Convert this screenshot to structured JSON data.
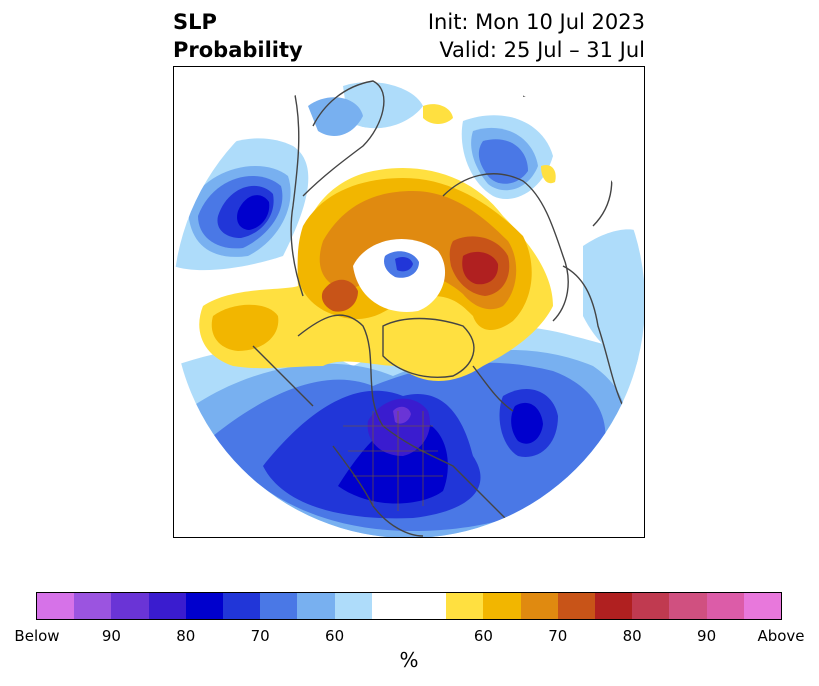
{
  "title": {
    "left_line1": "SLP",
    "left_line2": "Probability",
    "right_line1": "Init: Mon 10 Jul 2023",
    "right_line2": "Valid: 25 Jul – 31 Jul"
  },
  "colorbar": {
    "colors": [
      "#d672e8",
      "#9b54e0",
      "#6a34d6",
      "#3a1ccf",
      "#0000cd",
      "#2136d8",
      "#4a78e6",
      "#78b0f0",
      "#aedcfa",
      "#ffffff",
      "#ffffff",
      "#ffe040",
      "#f2b600",
      "#e08a10",
      "#c85418",
      "#b02020",
      "#c03a50",
      "#d05080",
      "#dc5ca8",
      "#e878dc"
    ],
    "tick_labels": [
      "Below",
      "90",
      "80",
      "70",
      "60",
      "60",
      "70",
      "80",
      "90",
      "Above"
    ],
    "unit": "%"
  },
  "map": {
    "projection": "north-polar-stereographic",
    "variable": "sea-level-pressure-probability",
    "colors": {
      "above_60": "#ffe040",
      "above_65": "#f2b600",
      "above_70": "#e08a10",
      "above_75": "#c85418",
      "above_80": "#b02020",
      "below_60": "#aedcfa",
      "below_65": "#78b0f0",
      "below_70": "#4a78e6",
      "below_75": "#2136d8",
      "below_80": "#0000cd",
      "below_85": "#3a1ccf",
      "below_90": "#6a34d6",
      "coastline": "#444444"
    }
  }
}
